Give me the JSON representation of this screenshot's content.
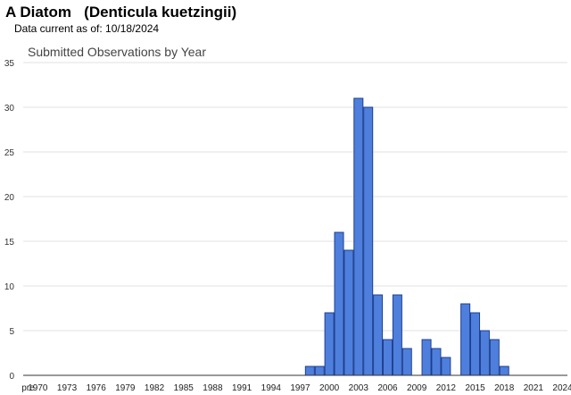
{
  "page": {
    "title": "A Diatom   (Denticula kuetzingii)",
    "subtitle": "Data current as of: 10/18/2024"
  },
  "colors": {
    "bar_fill": "#4f7fdc",
    "bar_stroke": "#1d3f8f",
    "grid": "#e2e2e2",
    "axis": "#333333"
  },
  "chart_data": {
    "type": "bar",
    "title": "Submitted Observations by Year",
    "xlabel": "",
    "ylabel": "",
    "ylim": [
      0,
      35
    ],
    "yticks": [
      0,
      5,
      10,
      15,
      20,
      25,
      30,
      35
    ],
    "grid": true,
    "x_tick_labels": [
      "pre",
      "1970",
      "1973",
      "1976",
      "1979",
      "1982",
      "1985",
      "1988",
      "1991",
      "1994",
      "1997",
      "2000",
      "2003",
      "2006",
      "2009",
      "2012",
      "2015",
      "2018",
      "2021",
      "2024"
    ],
    "categories": [
      "pre",
      "1970",
      "1971",
      "1972",
      "1973",
      "1974",
      "1975",
      "1976",
      "1977",
      "1978",
      "1979",
      "1980",
      "1981",
      "1982",
      "1983",
      "1984",
      "1985",
      "1986",
      "1987",
      "1988",
      "1989",
      "1990",
      "1991",
      "1992",
      "1993",
      "1994",
      "1995",
      "1996",
      "1997",
      "1998",
      "1999",
      "2000",
      "2001",
      "2002",
      "2003",
      "2004",
      "2005",
      "2006",
      "2007",
      "2008",
      "2009",
      "2010",
      "2011",
      "2012",
      "2013",
      "2014",
      "2015",
      "2016",
      "2017",
      "2018",
      "2019",
      "2020",
      "2021",
      "2022",
      "2023",
      "2024"
    ],
    "values": [
      0,
      0,
      0,
      0,
      0,
      0,
      0,
      0,
      0,
      0,
      0,
      0,
      0,
      0,
      0,
      0,
      0,
      0,
      0,
      0,
      0,
      0,
      0,
      0,
      0,
      0,
      0,
      0,
      0,
      1,
      1,
      7,
      16,
      14,
      31,
      30,
      9,
      4,
      9,
      3,
      0,
      4,
      3,
      2,
      0,
      8,
      7,
      5,
      4,
      1,
      0,
      0,
      0,
      0,
      0,
      0
    ]
  }
}
